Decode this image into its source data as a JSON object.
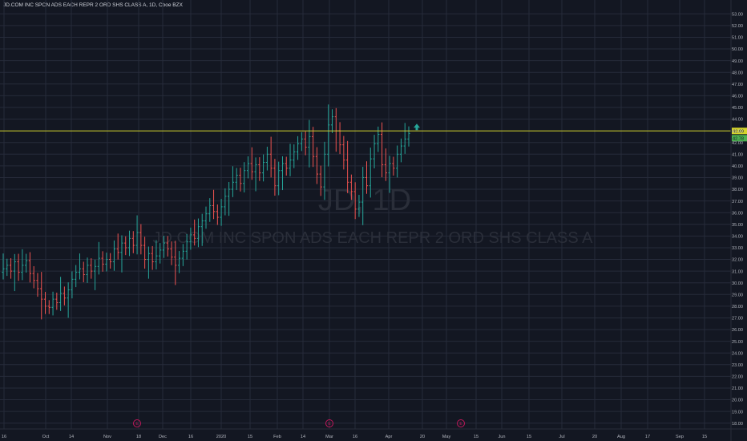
{
  "header": {
    "symbol_title": "JD.COM INC SPON ADS EACH REPR 2 ORD SHS CLASS A, 1D, Cboe BZX"
  },
  "watermark": {
    "ticker": "JD, 1D",
    "name": "JD.COM INC SPON ADS EACH REPR 2 ORD SHS CLASS A"
  },
  "colors": {
    "background": "#131722",
    "grid": "#262b3a",
    "up": "#26a69a",
    "down": "#ef5350",
    "resistance": "#d4d42a",
    "axis_text": "#b2b5be"
  },
  "chart_data": {
    "type": "ohlc",
    "ylim": [
      17.5,
      53.5
    ],
    "y_ticks": [
      "18.00",
      "19.00",
      "20.00",
      "21.00",
      "22.00",
      "23.00",
      "24.00",
      "25.00",
      "26.00",
      "27.00",
      "28.00",
      "29.00",
      "30.00",
      "31.00",
      "32.00",
      "33.00",
      "34.00",
      "35.00",
      "36.00",
      "37.00",
      "38.00",
      "39.00",
      "40.00",
      "41.00",
      "42.00",
      "43.00",
      "44.00",
      "45.00",
      "46.00",
      "47.00",
      "48.00",
      "49.00",
      "50.00",
      "51.00",
      "52.00",
      "53.00"
    ],
    "x_ticks": [
      "16",
      "Oct",
      "14",
      "Nov",
      "18",
      "Dec",
      "16",
      "2020",
      "15",
      "Feb",
      "14",
      "Mar",
      "16",
      "Apr",
      "20",
      "May",
      "15",
      "Jun",
      "15",
      "Jul",
      "20",
      "Aug",
      "17",
      "Sep",
      "15"
    ],
    "resistance_line": {
      "value": 42.99,
      "label": "42.99"
    },
    "last_price": {
      "value": 42.78,
      "label": "42.78"
    },
    "event_markers": [
      "E",
      "E",
      "E"
    ],
    "closes": [
      31.2,
      31.5,
      31.0,
      31.8,
      30.9,
      31.5,
      31.9,
      30.8,
      30.2,
      29.5,
      28.6,
      28.0,
      27.9,
      28.6,
      28.3,
      29.1,
      28.7,
      29.4,
      30.3,
      30.9,
      31.2,
      30.7,
      31.5,
      31.0,
      31.4,
      32.1,
      31.6,
      32.0,
      31.8,
      32.9,
      32.6,
      33.4,
      33.0,
      33.8,
      33.2,
      34.3,
      33.2,
      32.0,
      32.5,
      31.8,
      32.3,
      32.8,
      33.4,
      32.9,
      32.2,
      31.5,
      32.1,
      32.7,
      33.5,
      34.1,
      33.8,
      34.8,
      35.3,
      35.9,
      36.6,
      36.1,
      35.6,
      36.5,
      37.4,
      38.0,
      38.6,
      39.2,
      38.5,
      39.6,
      40.2,
      39.5,
      40.1,
      39.4,
      40.3,
      41.0,
      39.8,
      38.3,
      39.6,
      40.2,
      39.8,
      40.5,
      41.2,
      41.9,
      42.3,
      41.6,
      42.5,
      40.8,
      39.3,
      38.2,
      41.0,
      43.5,
      44.2,
      43.0,
      41.8,
      40.5,
      38.6,
      37.8,
      36.3,
      36.9,
      39.0,
      38.3,
      40.6,
      41.9,
      42.7,
      40.1,
      39.4,
      40.2,
      39.8,
      41.0,
      41.7,
      42.3,
      42.78
    ],
    "ohlc_note": ""
  }
}
